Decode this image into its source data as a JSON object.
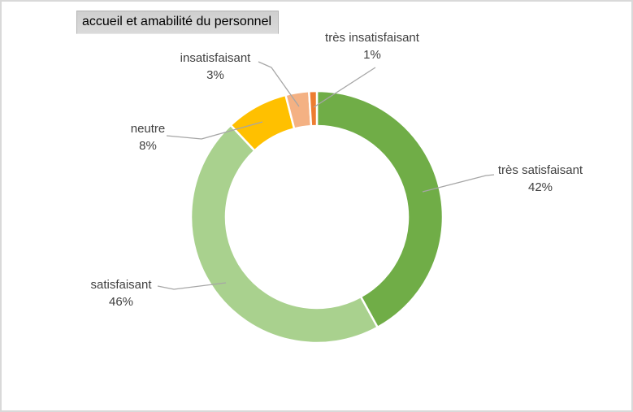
{
  "title": {
    "text": "accueil et amabilité du personnel"
  },
  "colors": {
    "label_text": "#404040",
    "leader_line": "#A6A6A6",
    "title_text": "#000000",
    "frame_border": "#D9D9D9",
    "slice_gap": "#FFFFFF"
  },
  "chart_data": {
    "type": "pie",
    "subtype": "donut",
    "title": "accueil et amabilité du personnel",
    "categories": [
      "très satisfaisant",
      "satisfaisant",
      "neutre",
      "insatisfaisant",
      "très insatisfaisant"
    ],
    "values": [
      42,
      46,
      8,
      3,
      1
    ],
    "unit": "%",
    "segments": [
      {
        "label": "très satisfaisant",
        "value_pct": 42,
        "display": "42%",
        "color": "#70AD47"
      },
      {
        "label": "satisfaisant",
        "value_pct": 46,
        "display": "46%",
        "color": "#A9D18E"
      },
      {
        "label": "neutre",
        "value_pct": 8,
        "display": "8%",
        "color": "#FFC000"
      },
      {
        "label": "insatisfaisant",
        "value_pct": 3,
        "display": "3%",
        "color": "#F4B183"
      },
      {
        "label": "très insatisfaisant",
        "value_pct": 1,
        "display": "1%",
        "color": "#ED7D31"
      }
    ],
    "start_angle_deg": 0,
    "direction": "clockwise",
    "donut_hole_ratio": 0.72,
    "legend": "none",
    "grid": false,
    "data_labels": "category name + percentage, outside ring with gray leader lines"
  }
}
